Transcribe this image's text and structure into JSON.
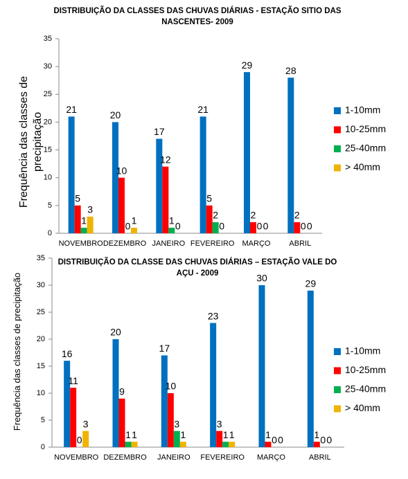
{
  "chart_data": [
    {
      "type": "bar",
      "title": "DISTRIBUIÇÃO DA CLASSES DAS CHUVAS DIÁRIAS - ESTAÇÃO SITIO DAS NASCENTES- 2009",
      "y_label": "Frequência das classes de precipitação",
      "categories": [
        "NOVEMBRO",
        "DEZEMBRO",
        "JANEIRO",
        "FEVEREIRO",
        "MARÇO",
        "ABRIL"
      ],
      "series": [
        {
          "name": "1-10mm",
          "color": "#0070c0",
          "values": [
            21,
            20,
            17,
            21,
            29,
            28
          ]
        },
        {
          "name": "10-25mm",
          "color": "#ff0000",
          "values": [
            5,
            10,
            12,
            5,
            2,
            2
          ]
        },
        {
          "name": "25-40mm",
          "color": "#00b050",
          "values": [
            1,
            0,
            1,
            2,
            0,
            0
          ]
        },
        {
          "name": "> 40mm",
          "color": "#f0b400",
          "values": [
            3,
            1,
            0,
            0,
            0,
            0
          ]
        }
      ],
      "ylim": [
        0,
        35
      ],
      "yticks": [
        0,
        5,
        10,
        15,
        20,
        25,
        30,
        35
      ],
      "grid": false,
      "legend": "right"
    },
    {
      "type": "bar",
      "title": "DISTRIBUIÇÃO DA CLASSE DAS CHUVAS DIÁRIAS – ESTAÇÃO VALE DO AÇU - 2009",
      "y_label": "Frequência das classes de precipitação",
      "categories": [
        "NOVEMBRO",
        "DEZEMBRO",
        "JANEIRO",
        "FEVEREIRO",
        "MARÇO",
        "ABRIL"
      ],
      "series": [
        {
          "name": "1-10mm",
          "color": "#0070c0",
          "values": [
            16,
            20,
            17,
            23,
            30,
            29
          ]
        },
        {
          "name": "10-25mm",
          "color": "#ff0000",
          "values": [
            11,
            9,
            10,
            3,
            1,
            1
          ]
        },
        {
          "name": "25-40mm",
          "color": "#00b050",
          "values": [
            0,
            1,
            3,
            1,
            0,
            0
          ]
        },
        {
          "name": "> 40mm",
          "color": "#f0b400",
          "values": [
            3,
            1,
            1,
            1,
            0,
            0
          ]
        }
      ],
      "ylim": [
        0,
        35
      ],
      "yticks": [
        0,
        5,
        10,
        15,
        20,
        25,
        30,
        35
      ],
      "grid": false,
      "legend": "right"
    }
  ]
}
